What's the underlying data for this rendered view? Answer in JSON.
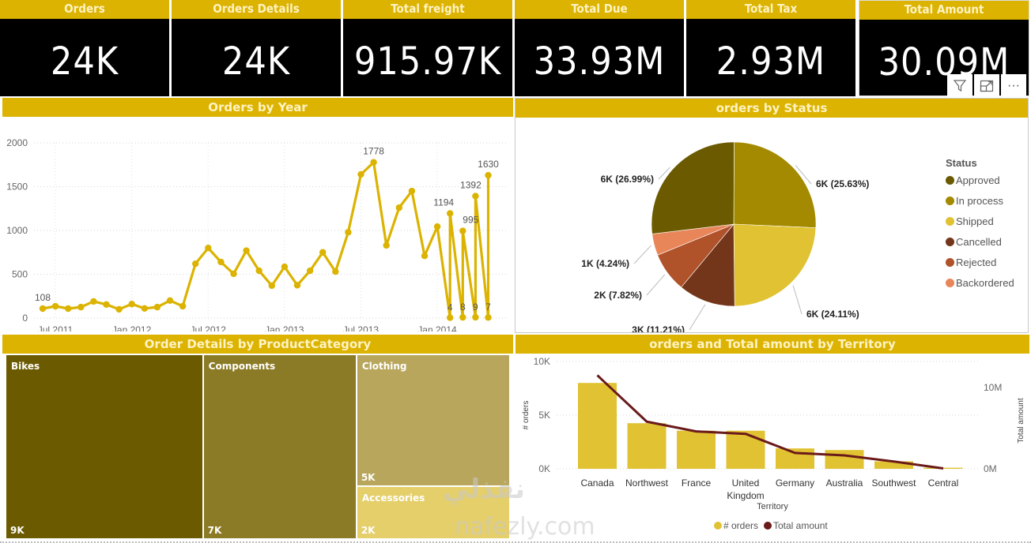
{
  "kpis": [
    {
      "label": "Orders",
      "value": "24K"
    },
    {
      "label": "Orders Details",
      "value": "24K"
    },
    {
      "label": "Total freight",
      "value": "915.97K"
    },
    {
      "label": "Total Due",
      "value": "33.93M"
    },
    {
      "label": "Total Tax",
      "value": "2.93M"
    },
    {
      "label": "Total Amount",
      "value": "30.09M"
    }
  ],
  "visual_tools": {
    "filter_icon": "filter-icon",
    "focus_icon": "focus-mode-icon",
    "more_icon": "more-options-icon",
    "more_label": "···"
  },
  "panels": {
    "orders_by_year": {
      "title": "Orders by Year"
    },
    "orders_by_status": {
      "title": "orders by Status"
    },
    "order_details_by_category": {
      "title": "Order Details by ProductCategory"
    },
    "orders_by_territory": {
      "title": "orders and Total amount by Territory"
    }
  },
  "watermark": {
    "line1": "نفذلي",
    "line2": "nafezly.com"
  },
  "colors": {
    "header": "#dbb300",
    "line": "#dbb300",
    "bar": "#e1c233",
    "amount_line": "#6b1a1a"
  },
  "chart_data": [
    {
      "id": "orders_by_year",
      "type": "line",
      "title": "Orders by Year",
      "xlabel": "",
      "ylabel": "",
      "ylim": [
        0,
        2000
      ],
      "yticks": [
        0,
        500,
        1000,
        1500,
        2000
      ],
      "xtick_labels": [
        "Jul 2011",
        "Jan 2012",
        "Jul 2012",
        "Jan 2013",
        "Jul 2013",
        "Jan 2014"
      ],
      "grid": true,
      "x": [
        0,
        1,
        2,
        3,
        4,
        5,
        6,
        7,
        8,
        9,
        10,
        11,
        12,
        13,
        14,
        15,
        16,
        17,
        18,
        19,
        20,
        21,
        22,
        23,
        24,
        25,
        26,
        27,
        28,
        29,
        30,
        31,
        32,
        32,
        33,
        33,
        34,
        34,
        35,
        35
      ],
      "values": [
        108,
        135,
        108,
        125,
        190,
        155,
        100,
        160,
        110,
        125,
        200,
        135,
        620,
        800,
        640,
        505,
        770,
        540,
        370,
        585,
        375,
        540,
        750,
        530,
        980,
        1640,
        1778,
        830,
        1260,
        1450,
        710,
        1044,
        4,
        1194,
        8,
        995,
        9,
        1392,
        7,
        1630
      ],
      "data_labels": [
        {
          "index": 0,
          "text": "108"
        },
        {
          "index": 26,
          "text": "1778"
        },
        {
          "index": 33,
          "text": "1194"
        },
        {
          "index": 32,
          "text": "4"
        },
        {
          "index": 35,
          "text": "995"
        },
        {
          "index": 34,
          "text": "8"
        },
        {
          "index": 37,
          "text": "1392"
        },
        {
          "index": 36,
          "text": "9"
        },
        {
          "index": 39,
          "text": "1630"
        },
        {
          "index": 38,
          "text": "7"
        }
      ]
    },
    {
      "id": "orders_by_status",
      "type": "pie",
      "title": "orders by Status",
      "legend_title": "Status",
      "legend_position": "right",
      "slices": [
        {
          "label": "Approved",
          "value": 26.99,
          "data_label": "6K (26.99%)",
          "color": "#6b5a00"
        },
        {
          "label": "In process",
          "value": 25.63,
          "data_label": "6K (25.63%)",
          "color": "#a38a00"
        },
        {
          "label": "Shipped",
          "value": 24.11,
          "data_label": "6K (24.11%)",
          "color": "#e0c232"
        },
        {
          "label": "Cancelled",
          "value": 11.21,
          "data_label": "3K (11.21%)",
          "color": "#74361a"
        },
        {
          "label": "Rejected",
          "value": 7.82,
          "data_label": "2K (7.82%)",
          "color": "#b0522a"
        },
        {
          "label": "Backordered",
          "value": 4.24,
          "data_label": "1K (4.24%)",
          "color": "#e8865a"
        }
      ]
    },
    {
      "id": "order_details_by_category",
      "type": "treemap",
      "title": "Order Details by ProductCategory",
      "items": [
        {
          "label": "Bikes",
          "value": 9000,
          "value_label": "9K",
          "color": "#6b5a00"
        },
        {
          "label": "Components",
          "value": 7000,
          "value_label": "7K",
          "color": "#8c7b26"
        },
        {
          "label": "Clothing",
          "value": 5000,
          "value_label": "5K",
          "color": "#b8a65c"
        },
        {
          "label": "Accessories",
          "value": 2000,
          "value_label": "2K",
          "color": "#e5cf6a"
        }
      ]
    },
    {
      "id": "orders_by_territory",
      "type": "bar",
      "title": "orders and Total amount by Territory",
      "xlabel": "Territory",
      "ylabel": "# orders",
      "y2label": "Total amount",
      "categories": [
        "Canada",
        "Northwest",
        "France",
        "United Kingdom",
        "Germany",
        "Australia",
        "Southwest",
        "Central"
      ],
      "category_lines": [
        [
          "Canada"
        ],
        [
          "Northwest"
        ],
        [
          "France"
        ],
        [
          "United",
          "Kingdom"
        ],
        [
          "Germany"
        ],
        [
          "Australia"
        ],
        [
          "Southwest"
        ],
        [
          "Central"
        ]
      ],
      "ylim": [
        0,
        10000
      ],
      "yticks": [
        {
          "v": 0,
          "label": "0K"
        },
        {
          "v": 5000,
          "label": "5K"
        },
        {
          "v": 10000,
          "label": "10K"
        }
      ],
      "y2lim": [
        0,
        13200000
      ],
      "y2ticks": [
        {
          "v": 0,
          "label": "0M"
        },
        {
          "v": 10000000,
          "label": "10M"
        }
      ],
      "grid": true,
      "legend_position": "bottom",
      "series": [
        {
          "name": "# orders",
          "kind": "bar",
          "color": "#e1c233",
          "values": [
            8000,
            4250,
            3550,
            3550,
            1900,
            1750,
            700,
            100
          ]
        },
        {
          "name": "Total amount",
          "kind": "line",
          "color": "#6b1a1a",
          "values": [
            11500000,
            5800000,
            4600000,
            4300000,
            1950000,
            1650000,
            900000,
            50000
          ]
        }
      ]
    }
  ]
}
